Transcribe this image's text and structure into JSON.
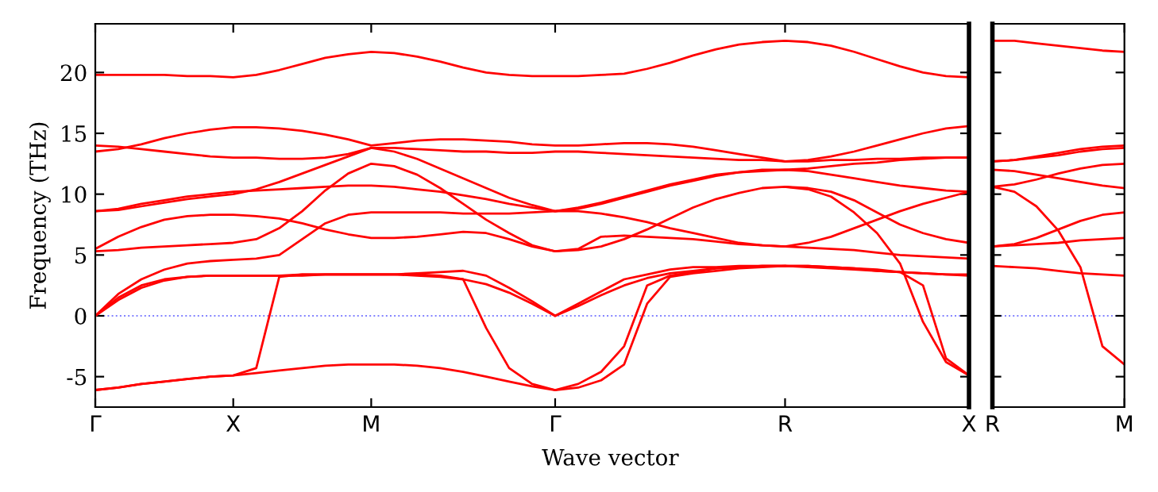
{
  "chart_data": [
    {
      "type": "line",
      "ylabel": "Frequency (THz)",
      "xlabel": "Wave vector",
      "ylim": [
        -7.5,
        24
      ],
      "categories": [
        "Γ",
        null,
        null,
        null,
        null,
        null,
        "X",
        null,
        null,
        null,
        null,
        null,
        "M",
        null,
        null,
        null,
        null,
        null,
        null,
        null,
        "Γ",
        null,
        null,
        null,
        null,
        null,
        null,
        null,
        null,
        null,
        "R",
        null,
        null,
        null,
        null,
        null,
        null,
        null,
        "X"
      ],
      "yticks": [
        -5,
        0,
        5,
        10,
        15,
        20
      ],
      "grid": false,
      "line_style": "solid",
      "ref_lines": [
        {
          "axis": "y",
          "value": 0,
          "color": "#8080ff",
          "line_style": "dotted"
        }
      ],
      "series": [
        {
          "color": "#ff0000",
          "values": [
            19.8,
            19.8,
            19.8,
            19.8,
            19.7,
            19.7,
            19.6,
            19.8,
            20.2,
            20.7,
            21.2,
            21.5,
            21.7,
            21.6,
            21.3,
            20.9,
            20.4,
            20.0,
            19.8,
            19.7,
            19.7,
            19.7,
            19.8,
            19.9,
            20.3,
            20.8,
            21.4,
            21.9,
            22.3,
            22.5,
            22.6,
            22.5,
            22.2,
            21.7,
            21.1,
            20.5,
            20.0,
            19.7,
            19.6
          ]
        },
        {
          "color": "#ff0000",
          "values": [
            13.5,
            13.7,
            14.1,
            14.6,
            15.0,
            15.3,
            15.5,
            15.5,
            15.4,
            15.2,
            14.9,
            14.5,
            14.0,
            14.2,
            14.4,
            14.5,
            14.5,
            14.4,
            14.3,
            14.1,
            14.0,
            14.0,
            14.1,
            14.2,
            14.2,
            14.1,
            13.9,
            13.6,
            13.3,
            13.0,
            12.7,
            12.8,
            13.1,
            13.5,
            14.0,
            14.5,
            15.0,
            15.4,
            15.6
          ]
        },
        {
          "color": "#ff0000",
          "values": [
            14.0,
            13.9,
            13.7,
            13.5,
            13.3,
            13.1,
            13.0,
            13.0,
            12.9,
            12.9,
            13.0,
            13.3,
            13.8,
            13.8,
            13.7,
            13.6,
            13.5,
            13.5,
            13.4,
            13.4,
            13.5,
            13.5,
            13.4,
            13.3,
            13.2,
            13.1,
            13.0,
            12.9,
            12.8,
            12.8,
            12.7,
            12.7,
            12.8,
            12.8,
            12.9,
            12.9,
            13.0,
            13.0,
            13.0
          ]
        },
        {
          "color": "#ff0000",
          "values": [
            8.6,
            8.8,
            9.2,
            9.5,
            9.8,
            10.0,
            10.2,
            10.3,
            10.4,
            10.5,
            10.6,
            10.7,
            10.7,
            10.6,
            10.4,
            10.2,
            9.9,
            9.6,
            9.2,
            8.9,
            8.6,
            8.9,
            9.3,
            9.8,
            10.3,
            10.8,
            11.2,
            11.6,
            11.8,
            11.9,
            12.0,
            11.9,
            11.6,
            11.3,
            11.0,
            10.7,
            10.5,
            10.3,
            10.2
          ]
        },
        {
          "color": "#ff0000",
          "values": [
            8.6,
            8.7,
            9.0,
            9.3,
            9.6,
            9.8,
            10.0,
            10.4,
            11.0,
            11.7,
            12.4,
            13.1,
            13.8,
            13.5,
            12.9,
            12.1,
            11.3,
            10.5,
            9.7,
            9.1,
            8.6,
            8.8,
            9.2,
            9.7,
            10.2,
            10.7,
            11.1,
            11.5,
            11.8,
            12.0,
            12.0,
            12.1,
            12.3,
            12.5,
            12.6,
            12.8,
            12.9,
            13.0,
            13.0
          ]
        },
        {
          "color": "#ff0000",
          "values": [
            5.5,
            6.5,
            7.3,
            7.9,
            8.2,
            8.3,
            8.3,
            8.2,
            8.0,
            7.6,
            7.1,
            6.7,
            6.4,
            6.4,
            6.5,
            6.7,
            6.9,
            6.8,
            6.3,
            5.7,
            5.3,
            5.4,
            5.7,
            6.3,
            7.1,
            8.0,
            8.9,
            9.6,
            10.1,
            10.5,
            10.6,
            10.5,
            10.2,
            9.5,
            8.5,
            7.5,
            6.8,
            6.3,
            6.0
          ]
        },
        {
          "color": "#ff0000",
          "values": [
            5.3,
            5.4,
            5.6,
            5.7,
            5.8,
            5.9,
            6.0,
            6.3,
            7.2,
            8.6,
            10.3,
            11.7,
            12.5,
            12.3,
            11.6,
            10.5,
            9.2,
            7.9,
            6.8,
            5.8,
            5.3,
            5.5,
            6.5,
            6.6,
            6.5,
            6.4,
            6.3,
            6.1,
            5.9,
            5.8,
            5.7,
            6.0,
            6.5,
            7.2,
            7.9,
            8.6,
            9.2,
            9.7,
            10.2
          ]
        },
        {
          "color": "#ff0000",
          "values": [
            0,
            1.8,
            3.0,
            3.8,
            4.3,
            4.5,
            4.6,
            4.7,
            5.0,
            6.3,
            7.6,
            8.3,
            8.5,
            8.5,
            8.5,
            8.5,
            8.4,
            8.4,
            8.4,
            8.5,
            8.6,
            8.6,
            8.4,
            8.1,
            7.7,
            7.2,
            6.8,
            6.4,
            6.0,
            5.8,
            5.7,
            5.6,
            5.5,
            5.4,
            5.2,
            5.0,
            4.9,
            4.8,
            4.7
          ]
        },
        {
          "color": "#ff0000",
          "values": [
            0,
            1.5,
            2.5,
            3.0,
            3.2,
            3.3,
            3.3,
            3.3,
            3.3,
            3.3,
            3.4,
            3.4,
            3.4,
            3.4,
            3.3,
            3.2,
            3.0,
            2.6,
            1.9,
            1.0,
            0,
            0.8,
            1.7,
            2.5,
            3.1,
            3.5,
            3.7,
            3.9,
            4.0,
            4.1,
            4.1,
            4.1,
            4.0,
            3.9,
            3.8,
            3.6,
            3.5,
            3.4,
            3.3
          ]
        },
        {
          "color": "#ff0000",
          "values": [
            0,
            1.3,
            2.3,
            2.9,
            3.2,
            3.3,
            3.3,
            3.3,
            3.3,
            3.4,
            3.4,
            3.4,
            3.4,
            3.4,
            3.5,
            3.6,
            3.7,
            3.3,
            2.3,
            1.2,
            0,
            1.0,
            2.0,
            3.0,
            3.4,
            3.8,
            4.0,
            4.0,
            4.1,
            4.1,
            4.1,
            4.1,
            4.0,
            3.9,
            3.7,
            3.6,
            3.5,
            3.4,
            3.4
          ]
        },
        {
          "color": "#ff0000",
          "values": [
            -6.1,
            -5.9,
            -5.6,
            -5.4,
            -5.2,
            -5.0,
            -4.9,
            -4.7,
            -4.5,
            -4.3,
            -4.1,
            -4.0,
            -4.0,
            -4.0,
            -4.1,
            -4.3,
            -4.6,
            -5.0,
            -5.4,
            -5.8,
            -6.1,
            -5.9,
            -5.3,
            -4.0,
            1.0,
            3.2,
            3.5,
            3.7,
            3.9,
            4.0,
            4.1,
            4.0,
            3.9,
            3.8,
            3.7,
            3.6,
            2.5,
            -3.5,
            -4.9
          ]
        },
        {
          "color": "#ff0000",
          "values": [
            -6.1,
            -5.9,
            -5.6,
            -5.4,
            -5.2,
            -5.0,
            -4.9,
            -4.3,
            3.2,
            3.4,
            3.4,
            3.4,
            3.4,
            3.4,
            3.4,
            3.3,
            3.0,
            -1.0,
            -4.3,
            -5.6,
            -6.1,
            -5.6,
            -4.6,
            -2.5,
            2.5,
            3.3,
            3.6,
            3.9,
            4.0,
            4.1,
            4.1,
            null,
            null,
            null,
            null,
            null,
            null,
            null,
            null
          ]
        },
        {
          "color": "#ff0000",
          "values": [
            null,
            null,
            null,
            null,
            null,
            null,
            null,
            null,
            null,
            null,
            null,
            null,
            null,
            null,
            null,
            null,
            null,
            null,
            null,
            null,
            null,
            null,
            null,
            null,
            null,
            null,
            null,
            null,
            null,
            null,
            10.6,
            10.4,
            9.8,
            8.5,
            6.8,
            4.3,
            -0.5,
            -3.8,
            -4.9
          ]
        }
      ]
    },
    {
      "type": "line",
      "ylim": [
        -7.5,
        24
      ],
      "tick_labels": "x",
      "categories": [
        "R",
        null,
        null,
        null,
        null,
        null,
        "M"
      ],
      "yticks": [
        -5,
        0,
        5,
        10,
        15,
        20
      ],
      "grid": false,
      "line_style": "solid",
      "ref_lines": [
        {
          "axis": "y",
          "value": 0,
          "color": "#8080ff",
          "line_style": "dotted"
        }
      ],
      "series": [
        {
          "color": "#ff0000",
          "values": [
            22.6,
            22.6,
            22.4,
            22.2,
            22.0,
            21.8,
            21.7
          ]
        },
        {
          "color": "#ff0000",
          "values": [
            12.7,
            12.8,
            13.0,
            13.2,
            13.5,
            13.7,
            13.8
          ]
        },
        {
          "color": "#ff0000",
          "values": [
            12.7,
            12.8,
            13.1,
            13.4,
            13.7,
            13.9,
            14.0
          ]
        },
        {
          "color": "#ff0000",
          "values": [
            12.0,
            11.9,
            11.6,
            11.3,
            11.0,
            10.7,
            10.5
          ]
        },
        {
          "color": "#ff0000",
          "values": [
            10.6,
            10.8,
            11.2,
            11.7,
            12.1,
            12.4,
            12.5
          ]
        },
        {
          "color": "#ff0000",
          "values": [
            10.6,
            10.2,
            9.0,
            7.0,
            4.0,
            -2.5,
            -4.0
          ]
        },
        {
          "color": "#ff0000",
          "values": [
            5.7,
            5.9,
            6.4,
            7.1,
            7.8,
            8.3,
            8.5
          ]
        },
        {
          "color": "#ff0000",
          "values": [
            5.7,
            5.8,
            5.9,
            6.0,
            6.2,
            6.3,
            6.4
          ]
        },
        {
          "color": "#ff0000",
          "values": [
            4.1,
            4.0,
            3.9,
            3.7,
            3.5,
            3.4,
            3.3
          ]
        }
      ]
    }
  ]
}
